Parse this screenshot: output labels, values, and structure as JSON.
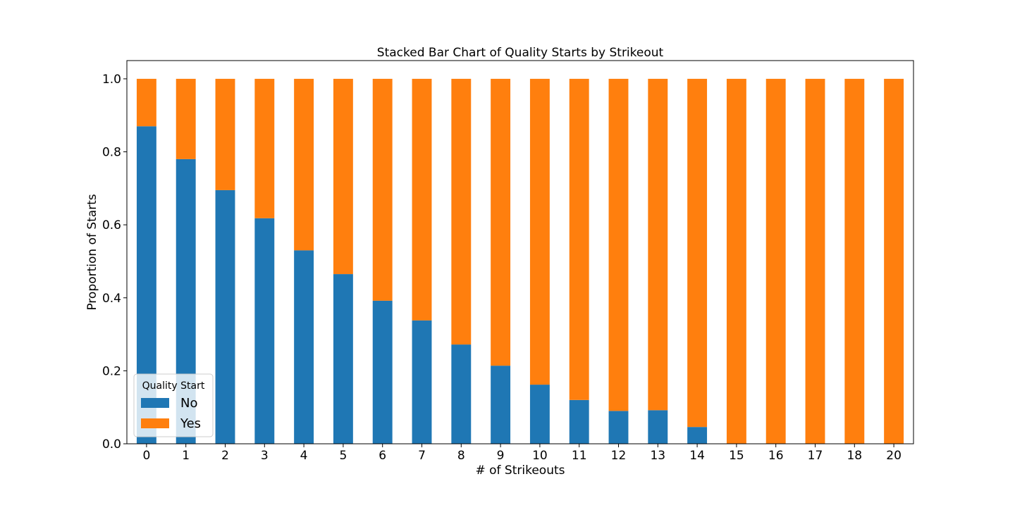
{
  "chart_data": {
    "type": "bar",
    "stacked": true,
    "title": "Stacked Bar Chart of Quality Starts by Strikeout",
    "xlabel": "# of Strikeouts",
    "ylabel": "Proportion of Starts",
    "categories": [
      "0",
      "1",
      "2",
      "3",
      "4",
      "5",
      "6",
      "7",
      "8",
      "9",
      "10",
      "11",
      "12",
      "13",
      "14",
      "15",
      "16",
      "17",
      "18",
      "20"
    ],
    "series": [
      {
        "name": "No",
        "color": "#1f77b4",
        "values": [
          0.87,
          0.78,
          0.695,
          0.618,
          0.53,
          0.465,
          0.392,
          0.338,
          0.272,
          0.214,
          0.162,
          0.12,
          0.09,
          0.092,
          0.046,
          0,
          0,
          0,
          0,
          0
        ]
      },
      {
        "name": "Yes",
        "color": "#ff7f0e",
        "values": [
          0.13,
          0.22,
          0.305,
          0.382,
          0.47,
          0.535,
          0.608,
          0.662,
          0.728,
          0.786,
          0.838,
          0.88,
          0.91,
          0.908,
          0.954,
          1,
          1,
          1,
          1,
          1
        ]
      }
    ],
    "ylim": [
      0,
      1.05
    ],
    "yticks": [
      "0.0",
      "0.2",
      "0.4",
      "0.6",
      "0.8",
      "1.0"
    ],
    "grid": false,
    "legend": {
      "title": "Quality Start",
      "placement": "lower-left"
    }
  }
}
